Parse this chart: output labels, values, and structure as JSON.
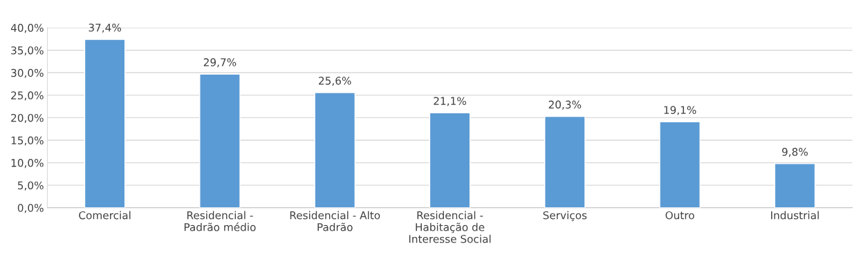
{
  "chart_data": {
    "type": "bar",
    "categories": [
      "Comercial",
      "Residencial -\nPadrão médio",
      "Residencial - Alto\nPadrão",
      "Residencial -\nHabitação de\nInteresse Social",
      "Serviços",
      "Outro",
      "Industrial"
    ],
    "values": [
      37.4,
      29.7,
      25.6,
      21.1,
      20.3,
      19.1,
      9.8
    ],
    "value_labels": [
      "37,4%",
      "29,7%",
      "25,6%",
      "21,1%",
      "20,3%",
      "19,1%",
      "9,8%"
    ],
    "color": "#5b9bd5",
    "ylim": [
      0,
      40
    ],
    "yticks": [
      {
        "value": 0,
        "label": "0,0%"
      },
      {
        "value": 5,
        "label": "5,0%"
      },
      {
        "value": 10,
        "label": "10,0%"
      },
      {
        "value": 15,
        "label": "15,0%"
      },
      {
        "value": 20,
        "label": "20,0%"
      },
      {
        "value": 25,
        "label": "25,0%"
      },
      {
        "value": 30,
        "label": "30,0%"
      },
      {
        "value": 35,
        "label": "35,0%"
      },
      {
        "value": 40,
        "label": "40,0%"
      }
    ],
    "grid": "y"
  }
}
